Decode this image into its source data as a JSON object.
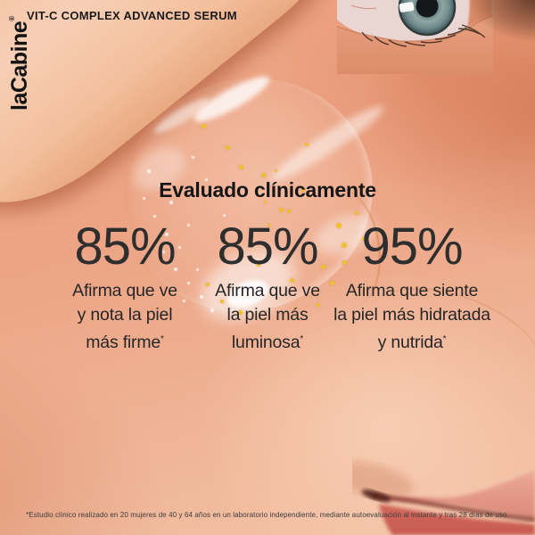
{
  "brand": {
    "logo_text": "laCabine",
    "registered_mark": "®"
  },
  "header": {
    "product_title": "VIT-C COMPLEX ADVANCED SERUM"
  },
  "clinical": {
    "heading": "Evaluado clínicamente",
    "stats": [
      {
        "value": "85%",
        "line1": "Afirma que ve",
        "line2": "y nota la piel",
        "line3": "más firme",
        "marker": "*"
      },
      {
        "value": "85%",
        "line1": "Afirma que ve",
        "line2": "la piel más",
        "line3": "luminosa",
        "marker": "*"
      },
      {
        "value": "95%",
        "line1": "Afirma que siente",
        "line2": "la piel más hidratada",
        "line3": "y nutrida",
        "marker": "*"
      }
    ]
  },
  "footnote": "*Estudio clínico realizado en 20 mujeres de 40 y 64 años en un laboratorio independiente, mediante autoevaluación al instante y tras 28 días de uso.",
  "colors": {
    "text_dark": "#1a1a1a",
    "skin_mid": "#eca485",
    "skin_light": "#f3c4a8",
    "skin_shadow": "#c6643c",
    "serum_bead": "#f1c02c",
    "iris": "#7f9899",
    "lip": "#d1685c"
  }
}
